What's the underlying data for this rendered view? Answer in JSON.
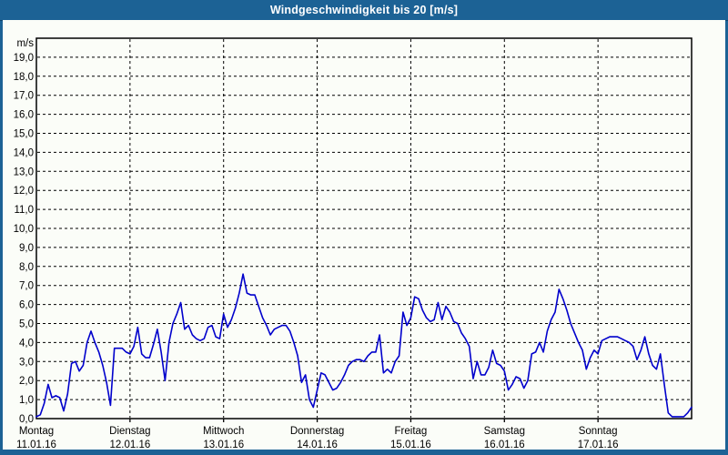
{
  "title_bar": {
    "title": "Windgeschwindigkeit bis 20 [m/s]"
  },
  "colors": {
    "frame_blue": "#1c6295",
    "content_background": "#fbfdf8",
    "line_blue": "#0000cc",
    "grid_black": "#000000",
    "title_text": "#ffffff"
  },
  "chart_data": {
    "type": "line",
    "title": "Windgeschwindigkeit bis 20 [m/s]",
    "y_unit_label": "m/s",
    "ylim": [
      0,
      20
    ],
    "ytick_step": 1.0,
    "ytick_labels": [
      "19,0",
      "18,0",
      "17,0",
      "16,0",
      "15,0",
      "14,0",
      "13,0",
      "12,0",
      "11,0",
      "10,0",
      "9,0",
      "8,0",
      "7,0",
      "6,0",
      "5,0",
      "4,0",
      "3,0",
      "2,0",
      "1,0",
      "0,0"
    ],
    "grid": "dashed",
    "legend_position": "none",
    "x_days": [
      {
        "name": "Montag",
        "date": "11.01.16"
      },
      {
        "name": "Dienstag",
        "date": "12.01.16"
      },
      {
        "name": "Mittwoch",
        "date": "13.01.16"
      },
      {
        "name": "Donnerstag",
        "date": "14.01.16"
      },
      {
        "name": "Freitag",
        "date": "15.01.16"
      },
      {
        "name": "Samstag",
        "date": "16.01.16"
      },
      {
        "name": "Sonntag",
        "date": "17.01.16"
      }
    ],
    "sampling": "hourly, 24 values per day, plus end-of-week point",
    "series": [
      {
        "name": "Windgeschwindigkeit",
        "unit": "m/s",
        "values_per_day": [
          [
            0.1,
            0.2,
            0.8,
            1.8,
            1.1,
            1.2,
            1.1,
            0.4,
            1.3,
            2.9,
            3.0,
            2.5,
            2.8,
            4.0,
            4.6,
            4.0,
            3.5,
            2.8,
            1.9,
            0.7,
            3.7,
            3.7,
            3.7,
            3.5
          ],
          [
            3.4,
            3.8,
            4.8,
            3.4,
            3.2,
            3.2,
            3.9,
            4.7,
            3.5,
            2.0,
            4.0,
            5.0,
            5.5,
            6.1,
            4.7,
            4.9,
            4.4,
            4.2,
            4.1,
            4.2,
            4.8,
            4.9,
            4.3,
            4.2
          ],
          [
            5.5,
            4.8,
            5.2,
            5.8,
            6.6,
            7.6,
            6.6,
            6.5,
            6.5,
            5.9,
            5.3,
            4.9,
            4.4,
            4.7,
            4.8,
            4.9,
            4.9,
            4.6,
            4.0,
            3.3,
            1.9,
            2.3,
            1.0,
            0.6
          ],
          [
            1.5,
            2.4,
            2.3,
            1.9,
            1.5,
            1.6,
            1.9,
            2.3,
            2.8,
            3.0,
            3.1,
            3.1,
            3.0,
            3.3,
            3.5,
            3.5,
            4.4,
            2.4,
            2.6,
            2.4,
            3.0,
            3.3,
            5.6,
            4.9
          ],
          [
            5.3,
            6.4,
            6.3,
            5.7,
            5.3,
            5.1,
            5.2,
            6.1,
            5.2,
            5.9,
            5.6,
            5.1,
            5.0,
            4.5,
            4.2,
            3.8,
            2.1,
            3.0,
            2.3,
            2.3,
            2.7,
            3.6,
            2.9,
            2.8
          ],
          [
            2.5,
            1.5,
            1.8,
            2.2,
            2.1,
            1.6,
            2.0,
            3.4,
            3.5,
            4.0,
            3.5,
            4.6,
            5.2,
            5.6,
            6.8,
            6.3,
            5.7,
            5.0,
            4.5,
            4.0,
            3.6,
            2.6,
            3.2,
            3.6
          ],
          [
            3.4,
            4.1,
            4.2,
            4.3,
            4.3,
            4.3,
            4.2,
            4.1,
            4.0,
            3.8,
            3.1,
            3.6,
            4.3,
            3.4,
            2.8,
            2.6,
            3.4,
            1.8,
            0.3,
            0.1,
            0.1,
            0.1,
            0.1,
            0.3
          ]
        ],
        "end_of_week_value": 0.6
      }
    ]
  }
}
